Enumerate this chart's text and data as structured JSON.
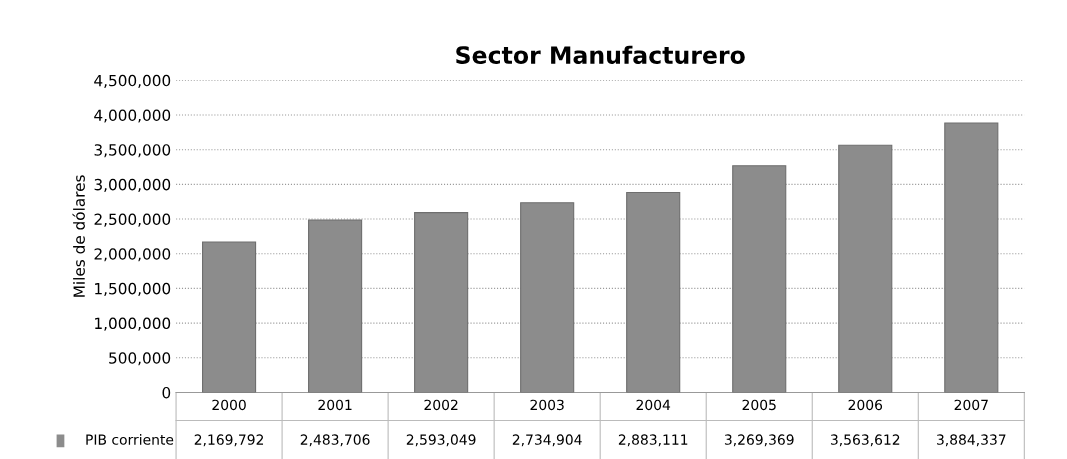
{
  "chart_data": {
    "type": "bar",
    "title": "Sector Manufacturero",
    "ylabel": "Miles de dólares",
    "categories": [
      "2000",
      "2001",
      "2002",
      "2003",
      "2004",
      "2005",
      "2006",
      "2007"
    ],
    "series": [
      {
        "name": "PIB corriente",
        "color": "#8c8c8c",
        "values": [
          2169792,
          2483706,
          2593049,
          2734904,
          2883111,
          3269369,
          3563612,
          3884337
        ]
      }
    ],
    "value_labels": [
      "2,169,792",
      "2,483,706",
      "2,593,049",
      "2,734,904",
      "2,883,111",
      "3,269,369",
      "3,563,612",
      "3,884,337"
    ],
    "ylim": [
      0,
      4500000
    ],
    "yticks": [
      {
        "value": 0,
        "label": "0"
      },
      {
        "value": 500000,
        "label": "500,000"
      },
      {
        "value": 1000000,
        "label": "1,000,000"
      },
      {
        "value": 1500000,
        "label": "1,500,000"
      },
      {
        "value": 2000000,
        "label": "2,000,000"
      },
      {
        "value": 2500000,
        "label": "2,500,000"
      },
      {
        "value": 3000000,
        "label": "3,000,000"
      },
      {
        "value": 3500000,
        "label": "3,500,000"
      },
      {
        "value": 4000000,
        "label": "4,000,000"
      },
      {
        "value": 4500000,
        "label": "4,500,000"
      }
    ],
    "grid": "y"
  }
}
